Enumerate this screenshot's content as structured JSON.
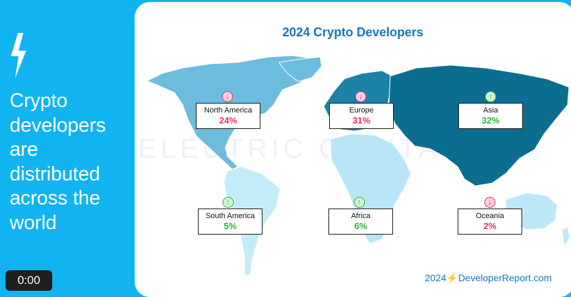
{
  "sidebar": {
    "headline_lines": [
      "Crypto",
      "developers",
      "are",
      "distributed",
      "across the",
      "world"
    ],
    "timer": "0:00",
    "bolt_icon": "lightning-bolt-icon"
  },
  "map": {
    "title": "2024 Crypto Developers",
    "watermark": "ELECTRIC CAPITAL",
    "footer": "2024⚡DeveloperReport.com",
    "regions": [
      {
        "name": "North America",
        "percent": "24%",
        "trend": "down"
      },
      {
        "name": "Europe",
        "percent": "31%",
        "trend": "down"
      },
      {
        "name": "Asia",
        "percent": "32%",
        "trend": "up"
      },
      {
        "name": "South America",
        "percent": "5%",
        "trend": "up"
      },
      {
        "name": "Africa",
        "percent": "6%",
        "trend": "up"
      },
      {
        "name": "Oceania",
        "percent": "2%",
        "trend": "down"
      }
    ],
    "colors": {
      "background": "#11b4f0",
      "title": "#1178b8",
      "down": "#e0306a",
      "up": "#2bb03a",
      "asia": "#0b6e90",
      "europe": "#1c82a6",
      "north_america": "#6cbcdd",
      "south_america": "#c4ebf8",
      "africa": "#b8e6f7",
      "oceania": "#bde8f8"
    }
  }
}
